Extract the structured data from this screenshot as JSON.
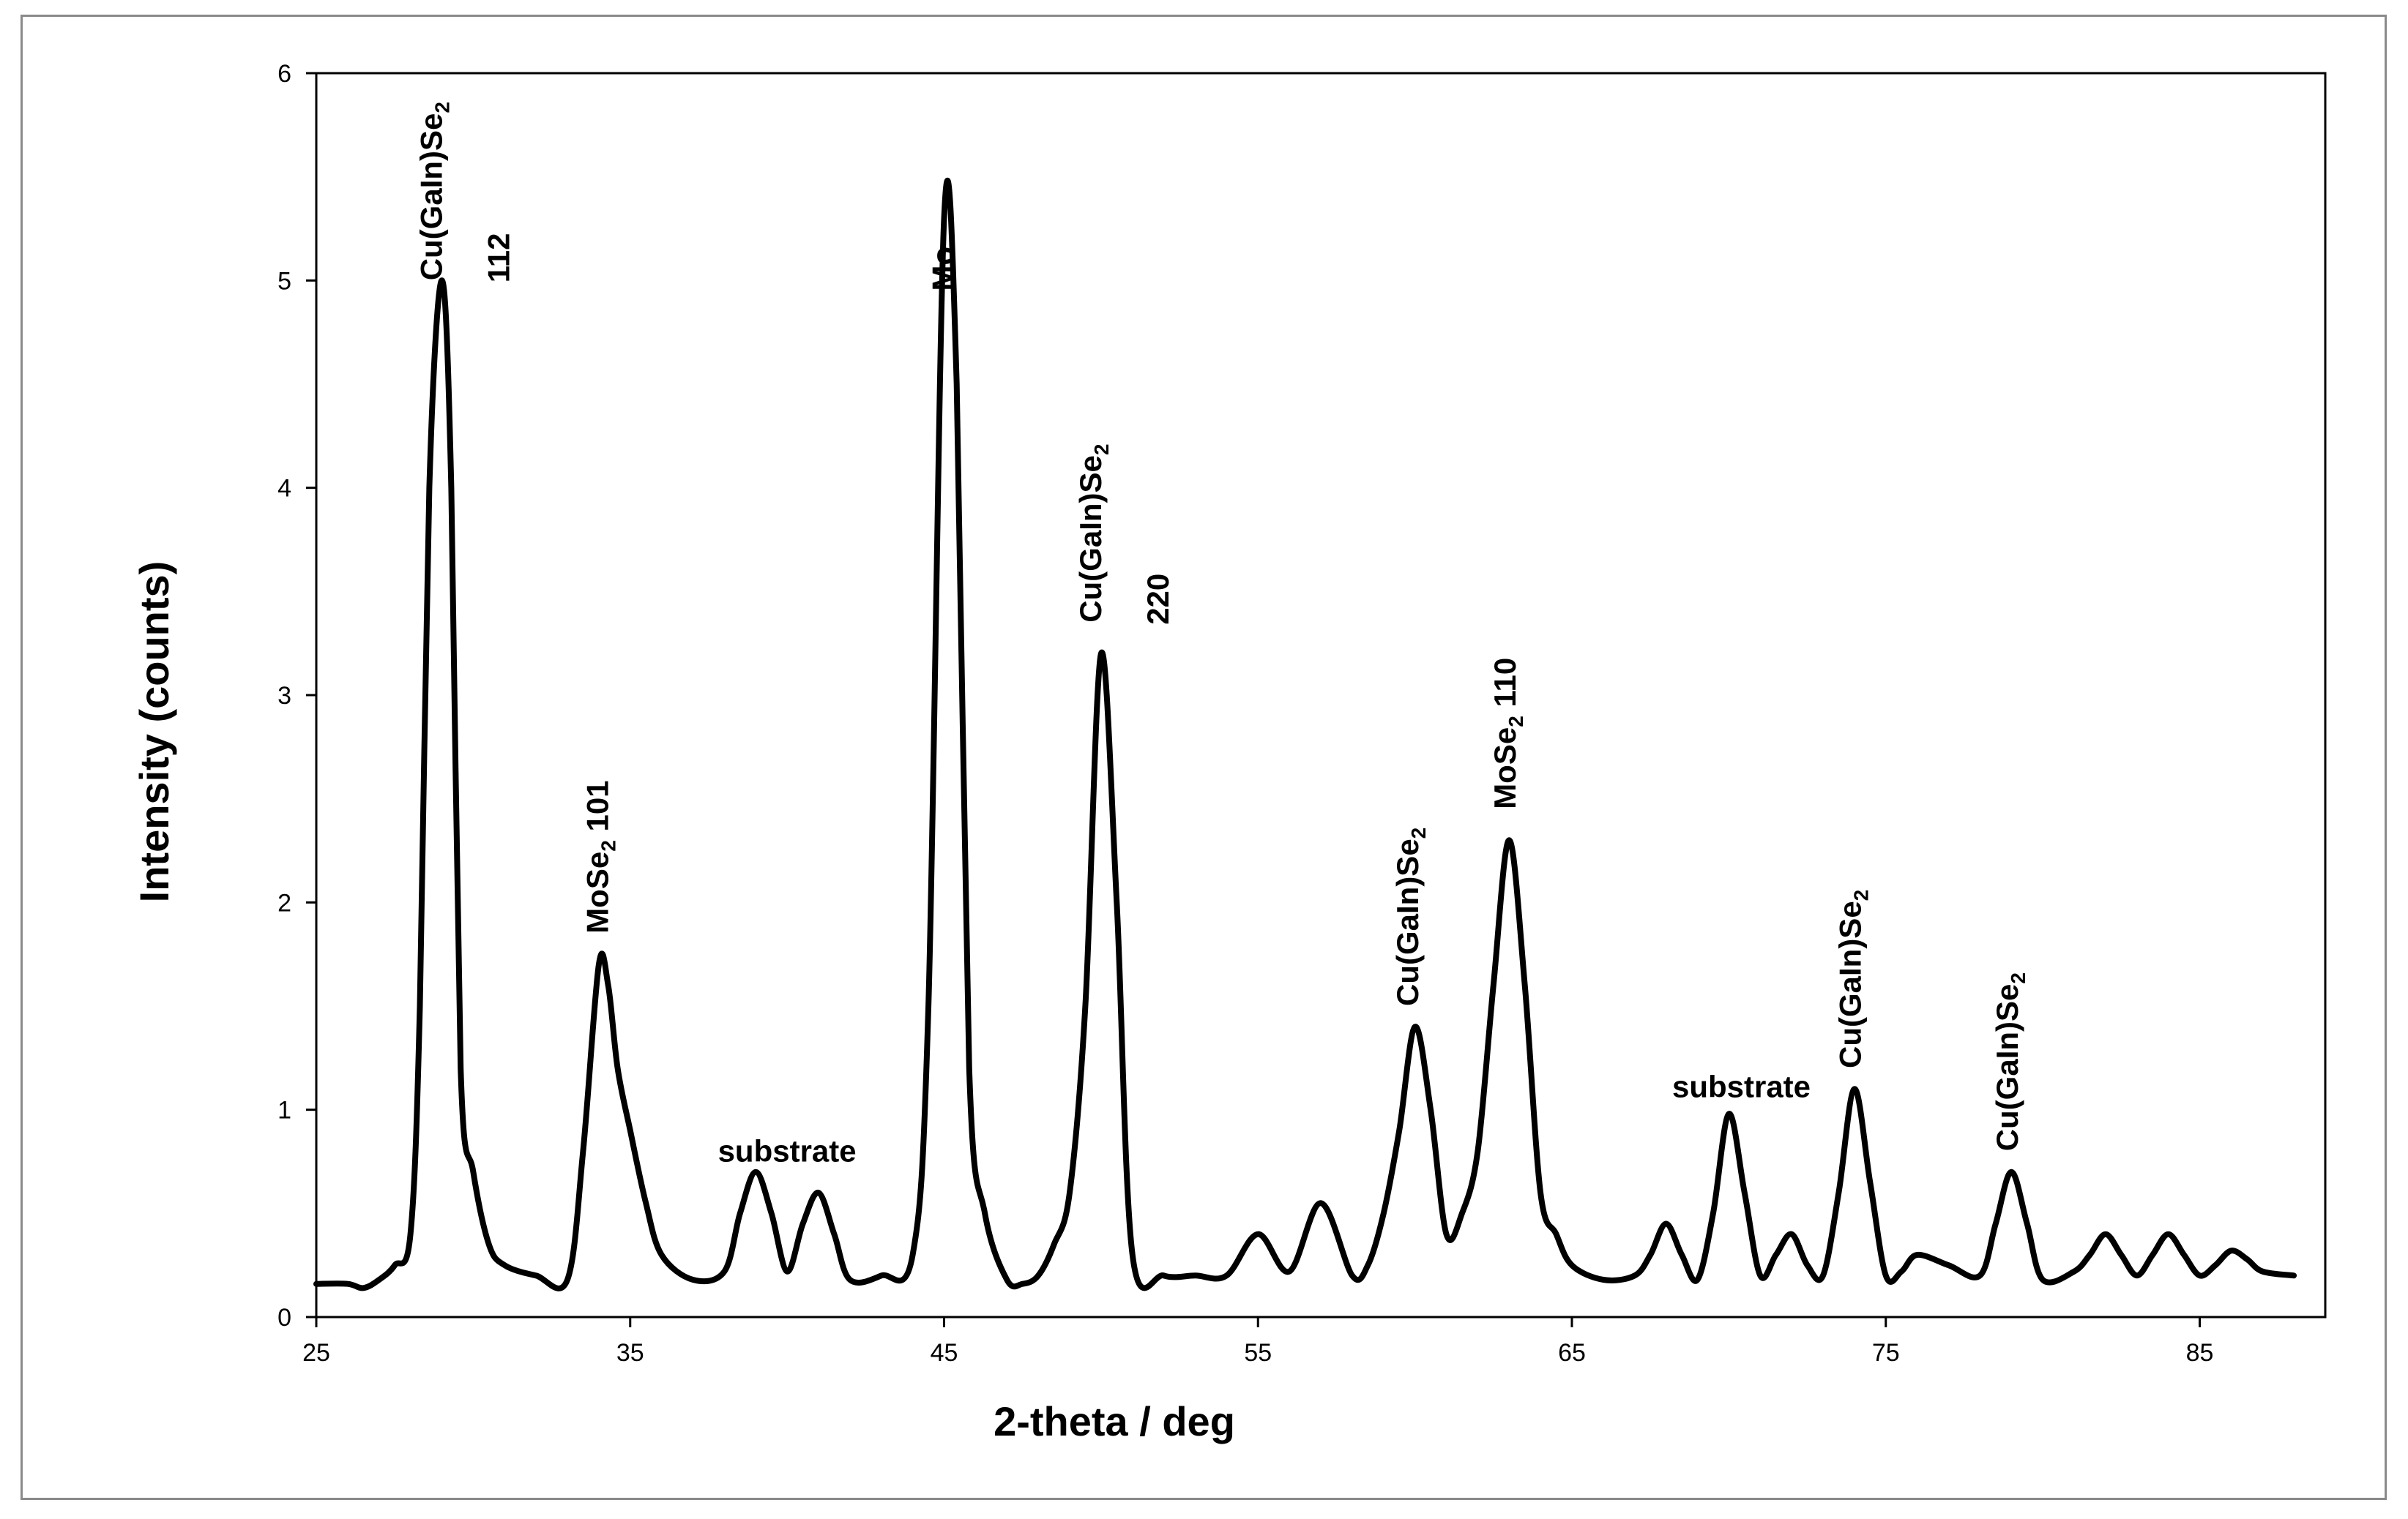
{
  "chart_data": {
    "type": "line",
    "title": "",
    "xlabel": "2-theta / deg",
    "ylabel": "Intensity (counts)",
    "xlim": [
      25,
      89
    ],
    "ylim": [
      0,
      6
    ],
    "xticks": [
      25,
      35,
      45,
      55,
      65,
      75,
      85
    ],
    "yticks": [
      0,
      1,
      2,
      3,
      4,
      5,
      6
    ],
    "grid": false,
    "legend": "none",
    "line_color": "#000000",
    "series": [
      {
        "x": [
          25,
          26,
          26.5,
          27,
          27.5,
          28,
          28.3,
          28.6,
          29,
          29.3,
          29.6,
          30,
          30.5,
          31,
          32,
          33,
          33.5,
          34,
          34.3,
          34.6,
          35,
          35.5,
          36,
          37,
          38,
          38.5,
          39,
          39.5,
          40,
          40.5,
          41,
          41.5,
          42,
          43,
          44,
          44.5,
          45,
          45.4,
          45.8,
          46.3,
          47,
          47.5,
          48,
          48.5,
          49,
          49.5,
          50,
          50.5,
          51,
          52,
          53,
          54,
          55,
          56,
          57,
          58,
          58.5,
          59,
          59.5,
          60,
          60.5,
          61,
          61.5,
          62,
          62.5,
          63,
          63.5,
          64,
          64.5,
          65,
          66,
          67,
          67.5,
          68,
          68.5,
          69,
          69.5,
          70,
          70.5,
          71,
          71.5,
          72,
          72.5,
          73,
          73.5,
          74,
          74.5,
          75,
          75.5,
          76,
          77,
          78,
          78.5,
          79,
          79.5,
          80,
          81,
          81.5,
          82,
          82.5,
          83,
          83.5,
          84,
          84.5,
          85,
          85.5,
          86,
          86.5,
          87,
          88
        ],
        "y": [
          0.16,
          0.16,
          0.14,
          0.18,
          0.25,
          0.4,
          1.5,
          4.0,
          5.0,
          4.0,
          1.2,
          0.7,
          0.35,
          0.25,
          0.2,
          0.18,
          0.8,
          1.7,
          1.6,
          1.2,
          0.9,
          0.55,
          0.3,
          0.18,
          0.22,
          0.5,
          0.7,
          0.5,
          0.22,
          0.45,
          0.6,
          0.4,
          0.18,
          0.2,
          0.3,
          1.5,
          5.3,
          4.5,
          1.2,
          0.5,
          0.18,
          0.16,
          0.2,
          0.35,
          0.6,
          1.5,
          3.2,
          2.0,
          0.3,
          0.2,
          0.2,
          0.2,
          0.4,
          0.22,
          0.55,
          0.2,
          0.25,
          0.5,
          0.9,
          1.4,
          1.0,
          0.4,
          0.5,
          0.8,
          1.6,
          2.3,
          1.6,
          0.6,
          0.4,
          0.25,
          0.18,
          0.2,
          0.3,
          0.45,
          0.3,
          0.18,
          0.5,
          0.98,
          0.6,
          0.2,
          0.3,
          0.4,
          0.25,
          0.2,
          0.6,
          1.1,
          0.65,
          0.2,
          0.22,
          0.3,
          0.25,
          0.2,
          0.45,
          0.7,
          0.45,
          0.18,
          0.22,
          0.3,
          0.4,
          0.3,
          0.2,
          0.3,
          0.4,
          0.3,
          0.2,
          0.25,
          0.32,
          0.28,
          0.22,
          0.2
        ]
      }
    ],
    "annotations": [
      {
        "text": "Cu(GaIn)Se",
        "sub": "2",
        "line2": "112",
        "x": 29.0,
        "y": 5.0,
        "rotation": -90
      },
      {
        "text": "MoSe",
        "sub": "2",
        "suffix": " 101",
        "x": 34.3,
        "y": 1.85,
        "rotation": -90
      },
      {
        "text": "substrate",
        "x": 40.0,
        "y": 0.75,
        "rotation": 0
      },
      {
        "text": "Mo",
        "x": 45.3,
        "y": 4.95,
        "rotation": -90
      },
      {
        "text": "Cu(GaIn)Se",
        "sub": "2",
        "line2": "220",
        "x": 50.0,
        "y": 3.35,
        "rotation": -90
      },
      {
        "text": "Cu(GaIn)Se",
        "sub": "2",
        "x": 60.1,
        "y": 1.5,
        "rotation": -90
      },
      {
        "text": "MoSe",
        "sub": "2",
        "suffix": " 110",
        "x": 63.2,
        "y": 2.45,
        "rotation": -90
      },
      {
        "text": "substrate",
        "x": 70.4,
        "y": 1.06,
        "rotation": 0
      },
      {
        "text": "Cu(GaIn)Se",
        "sub": "2",
        "x": 74.2,
        "y": 1.2,
        "rotation": -90
      },
      {
        "text": "Cu(GaIn)Se",
        "sub": "2",
        "x": 79.2,
        "y": 0.8,
        "rotation": -90
      }
    ]
  }
}
